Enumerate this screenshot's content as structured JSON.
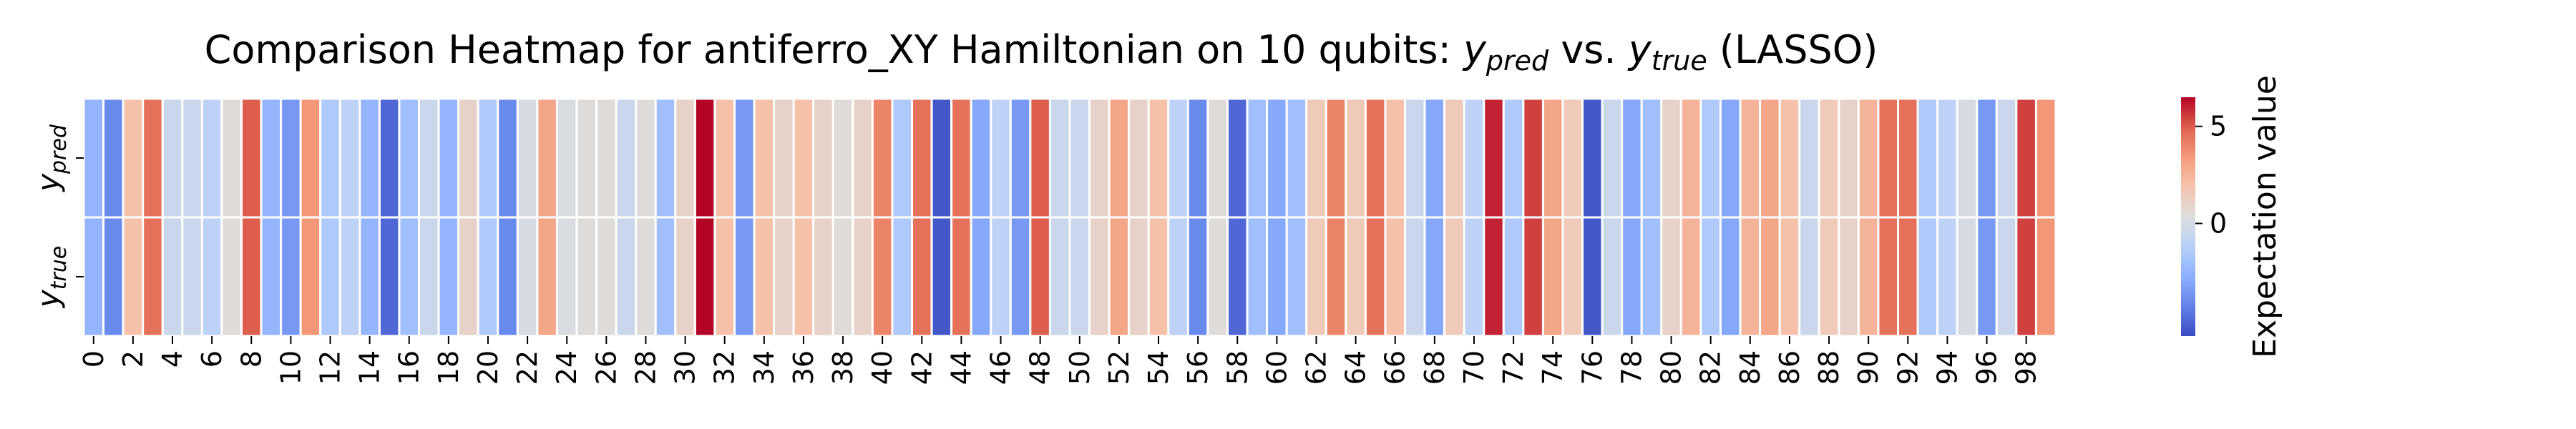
{
  "chart_data": {
    "type": "heatmap",
    "title_parts": [
      {
        "text": "Comparison Heatmap for antiferro_XY Hamiltonian on 10 qubits: ",
        "style": "normal"
      },
      {
        "text": "y",
        "style": "italic"
      },
      {
        "text": "pred",
        "style": "italic-sub"
      },
      {
        "text": " vs. ",
        "style": "normal"
      },
      {
        "text": "y",
        "style": "italic"
      },
      {
        "text": "true",
        "style": "italic-sub"
      },
      {
        "text": " (LASSO)",
        "style": "normal"
      }
    ],
    "rows": [
      {
        "main": "y",
        "sub": "pred"
      },
      {
        "main": "y",
        "sub": "true"
      }
    ],
    "x_tick_step": 2,
    "columns": 100,
    "colormap": "coolwarm",
    "vmin": -5.8,
    "vmax": 6.5,
    "colorbar": {
      "label": "Expectation value",
      "ticks": [
        0,
        5
      ]
    },
    "values": [
      [
        -2.5,
        -4.0,
        2.0,
        4.5,
        -0.5,
        -0.5,
        -1.0,
        0.5,
        5.0,
        -2.5,
        -3.5,
        3.5,
        -1.5,
        -1.0,
        -2.5,
        -5.0,
        -2.0,
        -0.5,
        -2.5,
        1.0,
        -1.5,
        -4.0,
        0.0,
        3.0,
        0.2,
        0.5,
        0.5,
        -0.5,
        0.5,
        -2.0,
        1.0,
        6.5,
        2.0,
        -3.5,
        2.0,
        1.0,
        2.0,
        1.0,
        0.5,
        1.0,
        4.0,
        -1.5,
        4.5,
        -5.5,
        4.5,
        -3.0,
        -1.0,
        -3.5,
        5.0,
        -0.5,
        -0.5,
        1.0,
        3.0,
        1.0,
        2.0,
        -1.0,
        -4.0,
        0.5,
        -5.0,
        -2.0,
        -3.0,
        -2.0,
        1.5,
        4.0,
        1.5,
        4.5,
        2.0,
        -0.5,
        -3.0,
        1.5,
        -1.0,
        6.0,
        -1.5,
        5.5,
        3.0,
        1.5,
        -5.5,
        -0.5,
        -3.0,
        -2.0,
        1.0,
        2.5,
        -1.5,
        -3.0,
        2.5,
        3.0,
        2.0,
        -0.5,
        1.5,
        1.0,
        2.5,
        4.5,
        4.5,
        -1.5,
        -1.0,
        0.0,
        -3.5,
        -0.5,
        5.5,
        3.5
      ],
      [
        -2.5,
        -4.0,
        2.0,
        4.5,
        -0.5,
        -0.5,
        -1.0,
        0.5,
        5.0,
        -2.5,
        -3.5,
        3.5,
        -1.5,
        -1.0,
        -2.5,
        -5.0,
        -2.0,
        -0.5,
        -2.5,
        1.0,
        -1.5,
        -4.0,
        0.0,
        3.0,
        0.2,
        0.5,
        0.5,
        -0.5,
        0.5,
        -2.0,
        1.0,
        6.5,
        2.0,
        -3.5,
        2.0,
        1.0,
        2.0,
        1.0,
        0.5,
        1.0,
        4.0,
        -1.5,
        4.5,
        -5.5,
        4.5,
        -3.0,
        -1.0,
        -3.5,
        5.0,
        -0.5,
        -0.5,
        1.0,
        3.0,
        1.0,
        2.0,
        -1.0,
        -4.0,
        0.5,
        -5.0,
        -2.0,
        -3.0,
        -2.0,
        1.5,
        4.0,
        1.5,
        4.5,
        2.0,
        -0.5,
        -3.0,
        1.5,
        -1.0,
        6.0,
        -1.5,
        5.5,
        3.0,
        1.5,
        -5.5,
        -0.5,
        -3.0,
        -2.0,
        1.0,
        2.5,
        -1.5,
        -3.0,
        2.5,
        3.0,
        2.0,
        -0.5,
        1.5,
        1.0,
        2.5,
        4.5,
        4.5,
        -1.5,
        -1.0,
        0.0,
        -3.5,
        -0.5,
        5.5,
        3.5
      ]
    ]
  }
}
